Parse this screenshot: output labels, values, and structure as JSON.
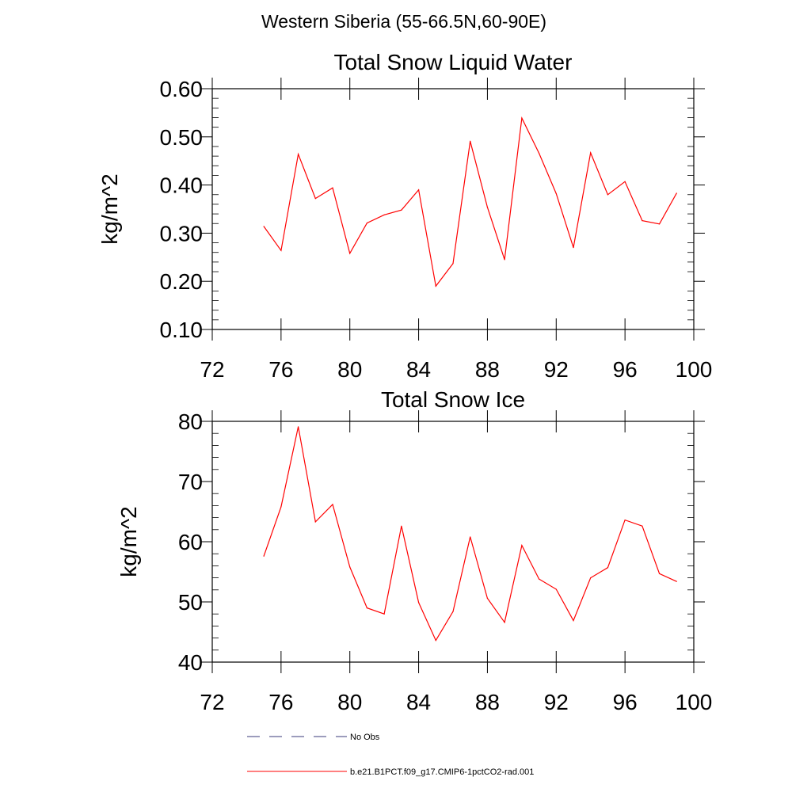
{
  "main_title": "Western Siberia (55-66.5N,60-90E)",
  "chart_data": [
    {
      "type": "line",
      "title": "Total Snow Liquid Water",
      "ylabel": "kg/m^2",
      "xlabel": "",
      "xlim": [
        72,
        100
      ],
      "ylim": [
        0.1,
        0.6
      ],
      "xticks": [
        72,
        76,
        80,
        84,
        88,
        92,
        96,
        100
      ],
      "xtick_labels": [
        "72",
        "76",
        "80",
        "84",
        "88",
        "92",
        "96",
        "100"
      ],
      "yticks": [
        0.1,
        0.2,
        0.3,
        0.4,
        0.5,
        0.6
      ],
      "ytick_labels": [
        "0.10",
        "0.20",
        "0.30",
        "0.40",
        "0.50",
        "0.60"
      ],
      "series": [
        {
          "name": "b.e21.B1PCT.f09_g17.CMIP6-1pctCO2-rad.001",
          "color": "#ff0000",
          "x": [
            75,
            76,
            77,
            78,
            79,
            80,
            81,
            82,
            83,
            84,
            85,
            86,
            87,
            88,
            89,
            90,
            91,
            92,
            93,
            94,
            95,
            96,
            97,
            98,
            99
          ],
          "y": [
            0.314,
            0.264,
            0.464,
            0.372,
            0.394,
            0.258,
            0.321,
            0.338,
            0.348,
            0.39,
            0.19,
            0.237,
            0.491,
            0.354,
            0.245,
            0.539,
            0.466,
            0.382,
            0.27,
            0.467,
            0.38,
            0.407,
            0.326,
            0.319,
            0.383
          ]
        }
      ]
    },
    {
      "type": "line",
      "title": "Total Snow Ice",
      "ylabel": "kg/m^2",
      "xlabel": "",
      "xlim": [
        72,
        100
      ],
      "ylim": [
        40,
        80
      ],
      "xticks": [
        72,
        76,
        80,
        84,
        88,
        92,
        96,
        100
      ],
      "xtick_labels": [
        "72",
        "76",
        "80",
        "84",
        "88",
        "92",
        "96",
        "100"
      ],
      "yticks": [
        40,
        50,
        60,
        70,
        80
      ],
      "ytick_labels": [
        "40",
        "50",
        "60",
        "70",
        "80"
      ],
      "series": [
        {
          "name": "b.e21.B1PCT.f09_g17.CMIP6-1pctCO2-rad.001",
          "color": "#ff0000",
          "x": [
            75,
            76,
            77,
            78,
            79,
            80,
            81,
            82,
            83,
            84,
            85,
            86,
            87,
            88,
            89,
            90,
            91,
            92,
            93,
            94,
            95,
            96,
            97,
            98,
            99
          ],
          "y": [
            57.6,
            65.8,
            79.1,
            63.3,
            66.2,
            55.8,
            49.0,
            48.0,
            62.6,
            49.9,
            43.6,
            48.4,
            60.8,
            50.6,
            46.6,
            59.4,
            53.8,
            52.1,
            46.9,
            54.0,
            55.7,
            63.6,
            62.6,
            54.7,
            53.4
          ]
        }
      ]
    }
  ],
  "legend": [
    {
      "label": "No Obs",
      "color": "#3a3a7a",
      "dash": "dashed"
    },
    {
      "label": "b.e21.B1PCT.f09_g17.CMIP6-1pctCO2-rad.001",
      "color": "#ff0000",
      "dash": "solid"
    }
  ]
}
